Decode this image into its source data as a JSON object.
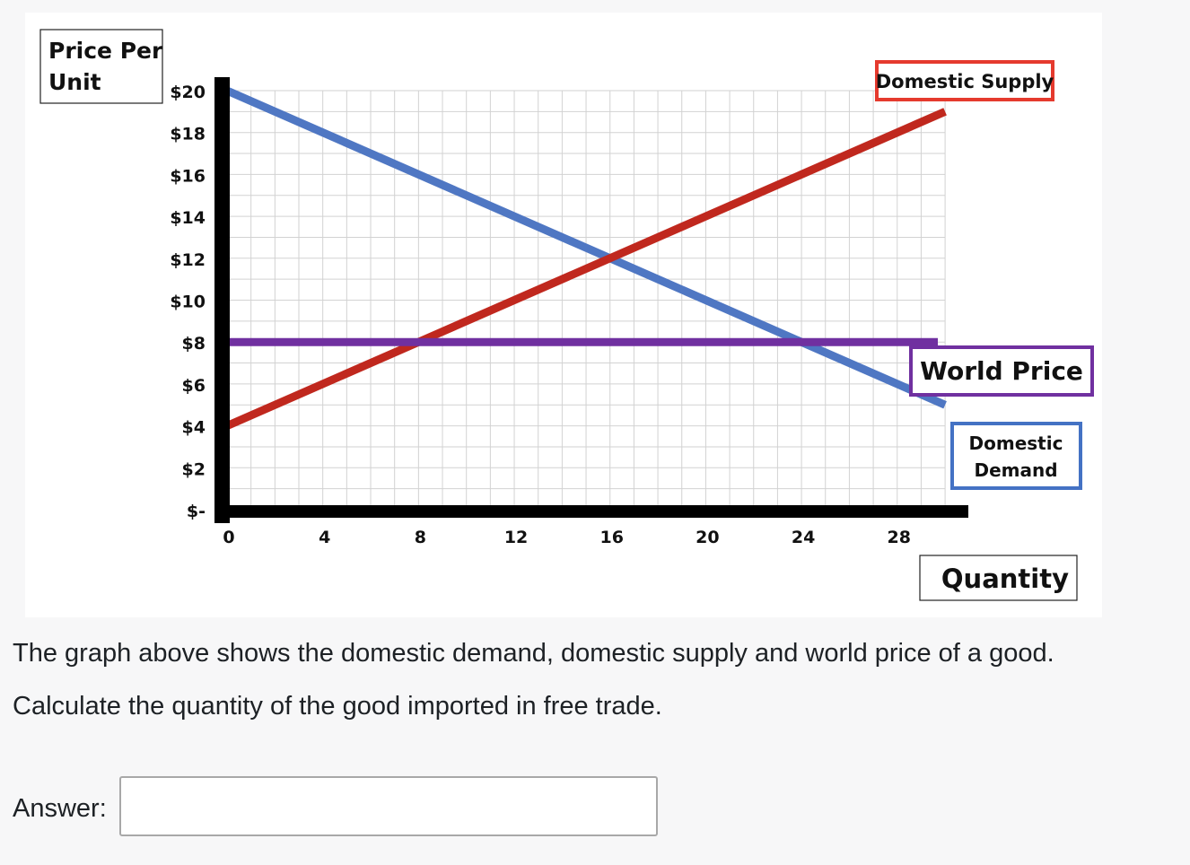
{
  "chart_data": {
    "type": "line",
    "ylabel": "Price Per Unit",
    "xlabel": "Quantity",
    "y_ticks": [
      "$20",
      "$18",
      "$16",
      "$14",
      "$12",
      "$10",
      "$8",
      "$6",
      "$4",
      "$2",
      "$-"
    ],
    "x_ticks": [
      "0",
      "4",
      "8",
      "12",
      "16",
      "20",
      "24",
      "28"
    ],
    "xlim": [
      0,
      30
    ],
    "ylim": [
      0,
      20
    ],
    "grid": true,
    "series": [
      {
        "name": "Domestic Supply",
        "color": "#c0281e",
        "points": [
          [
            0,
            4
          ],
          [
            30,
            19
          ]
        ]
      },
      {
        "name": "Domestic Demand",
        "color": "#4f77c3",
        "points": [
          [
            0,
            20
          ],
          [
            30,
            5
          ]
        ]
      },
      {
        "name": "World Price",
        "color": "#7030a0",
        "points": [
          [
            0,
            8
          ],
          [
            30,
            8
          ]
        ]
      }
    ],
    "legend_box_colors": {
      "Domestic Supply": "#e53a2e",
      "World Price": "#7030a0",
      "Domestic Demand": "#4472c4"
    }
  },
  "question": {
    "line1": "The graph above shows the domestic demand, domestic supply and world price of a good.",
    "line2": "Calculate the quantity of the good imported in free trade."
  },
  "answer": {
    "label": "Answer:",
    "value": ""
  }
}
